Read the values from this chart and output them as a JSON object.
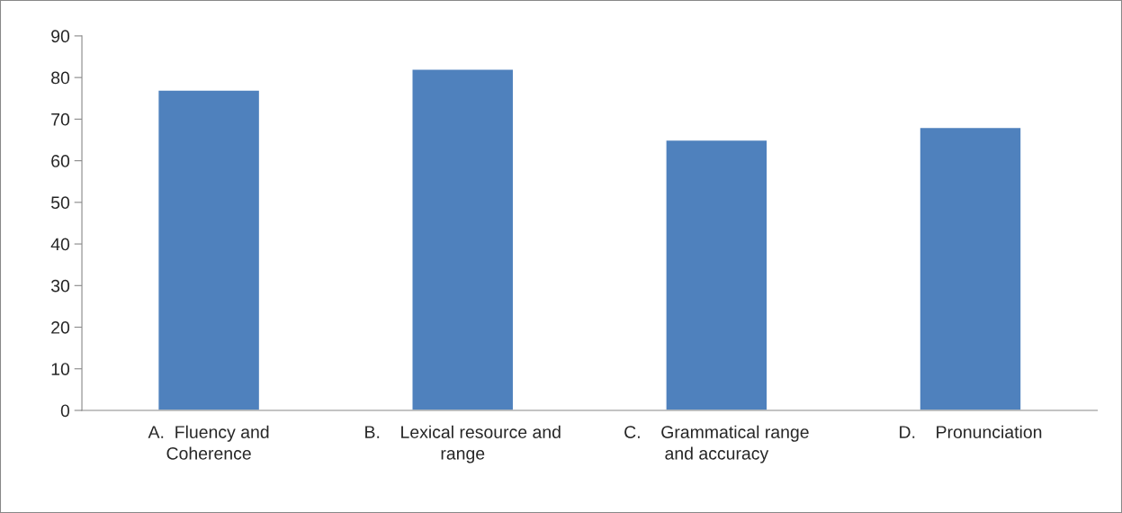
{
  "chart_data": {
    "type": "bar",
    "categories": [
      "A.  Fluency and\nCoherence",
      "B.    Lexical resource and\nrange",
      "C.    Grammatical range\nand accuracy",
      "D.    Pronunciation"
    ],
    "values": [
      77,
      82,
      65,
      68
    ],
    "color": "#4f81bd",
    "ylim": [
      0,
      90
    ],
    "yticks": [
      0,
      10,
      20,
      30,
      40,
      50,
      60,
      70,
      80,
      90
    ],
    "grid": false,
    "legend": false
  }
}
